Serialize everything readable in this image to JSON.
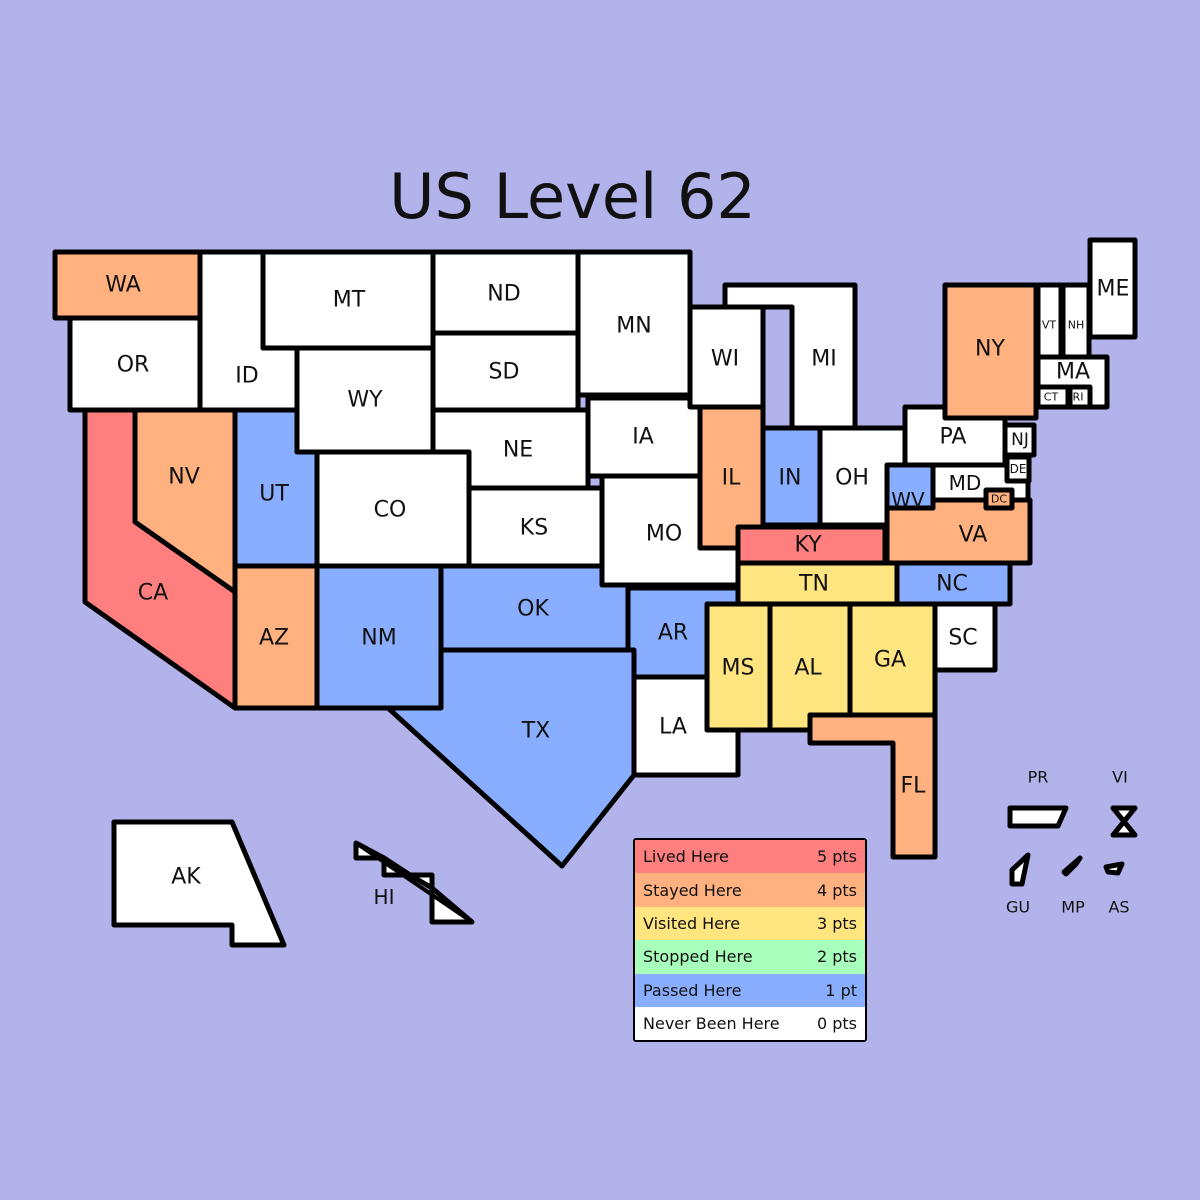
{
  "title": "US Level 62",
  "colors": {
    "background": "#b3b3ec",
    "lived": "#ff7f7f",
    "stayed": "#ffb27f",
    "visited": "#ffe57f",
    "stopped": "#a8ffbc",
    "passed": "#8aaeff",
    "never": "#ffffff"
  },
  "legend": [
    {
      "status": "lived",
      "label": "Lived Here",
      "points": "5 pts"
    },
    {
      "status": "stayed",
      "label": "Stayed Here",
      "points": "4 pts"
    },
    {
      "status": "visited",
      "label": "Visited Here",
      "points": "3 pts"
    },
    {
      "status": "stopped",
      "label": "Stopped Here",
      "points": "2 pts"
    },
    {
      "status": "passed",
      "label": "Passed Here",
      "points": "1 pt"
    },
    {
      "status": "never",
      "label": "Never Been Here",
      "points": "0 pts"
    }
  ],
  "states": [
    {
      "abbr": "WA",
      "status": "stayed"
    },
    {
      "abbr": "OR",
      "status": "never"
    },
    {
      "abbr": "ID",
      "status": "never"
    },
    {
      "abbr": "MT",
      "status": "never"
    },
    {
      "abbr": "WY",
      "status": "never"
    },
    {
      "abbr": "ND",
      "status": "never"
    },
    {
      "abbr": "SD",
      "status": "never"
    },
    {
      "abbr": "NE",
      "status": "never"
    },
    {
      "abbr": "KS",
      "status": "never"
    },
    {
      "abbr": "CO",
      "status": "never"
    },
    {
      "abbr": "UT",
      "status": "passed"
    },
    {
      "abbr": "NV",
      "status": "stayed"
    },
    {
      "abbr": "CA",
      "status": "lived"
    },
    {
      "abbr": "AZ",
      "status": "stayed"
    },
    {
      "abbr": "NM",
      "status": "passed"
    },
    {
      "abbr": "OK",
      "status": "passed"
    },
    {
      "abbr": "TX",
      "status": "passed"
    },
    {
      "abbr": "MN",
      "status": "never"
    },
    {
      "abbr": "IA",
      "status": "never"
    },
    {
      "abbr": "MO",
      "status": "never"
    },
    {
      "abbr": "AR",
      "status": "passed"
    },
    {
      "abbr": "LA",
      "status": "never"
    },
    {
      "abbr": "WI",
      "status": "never"
    },
    {
      "abbr": "MI",
      "status": "never"
    },
    {
      "abbr": "IL",
      "status": "stayed"
    },
    {
      "abbr": "IN",
      "status": "passed"
    },
    {
      "abbr": "OH",
      "status": "never"
    },
    {
      "abbr": "KY",
      "status": "lived"
    },
    {
      "abbr": "TN",
      "status": "visited"
    },
    {
      "abbr": "MS",
      "status": "visited"
    },
    {
      "abbr": "AL",
      "status": "visited"
    },
    {
      "abbr": "GA",
      "status": "visited"
    },
    {
      "abbr": "FL",
      "status": "stayed"
    },
    {
      "abbr": "SC",
      "status": "never"
    },
    {
      "abbr": "NC",
      "status": "passed"
    },
    {
      "abbr": "VA",
      "status": "stayed"
    },
    {
      "abbr": "WV",
      "status": "passed"
    },
    {
      "abbr": "MD",
      "status": "never"
    },
    {
      "abbr": "DC",
      "status": "stayed"
    },
    {
      "abbr": "DE",
      "status": "never"
    },
    {
      "abbr": "NJ",
      "status": "never"
    },
    {
      "abbr": "PA",
      "status": "never"
    },
    {
      "abbr": "NY",
      "status": "stayed"
    },
    {
      "abbr": "VT",
      "status": "never"
    },
    {
      "abbr": "NH",
      "status": "never"
    },
    {
      "abbr": "ME",
      "status": "never"
    },
    {
      "abbr": "MA",
      "status": "never"
    },
    {
      "abbr": "CT",
      "status": "never"
    },
    {
      "abbr": "RI",
      "status": "never"
    },
    {
      "abbr": "AK",
      "status": "never"
    },
    {
      "abbr": "HI",
      "status": "never"
    }
  ],
  "territories": [
    {
      "abbr": "PR",
      "status": "never"
    },
    {
      "abbr": "VI",
      "status": "never"
    },
    {
      "abbr": "GU",
      "status": "never"
    },
    {
      "abbr": "MP",
      "status": "never"
    },
    {
      "abbr": "AS",
      "status": "never"
    }
  ]
}
